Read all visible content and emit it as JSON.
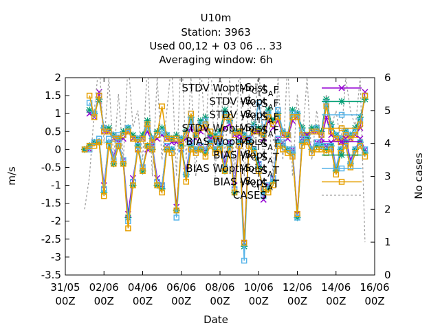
{
  "title": {
    "line1": "U10m",
    "line2": "Station:     3963",
    "line3": "Used  00,12  + 03 06 ... 33",
    "line4": "Averaging window:  6h"
  },
  "chart_data": {
    "type": "line",
    "xlabel": "Date",
    "ylabel": "m/s",
    "y2label": "No cases",
    "xlim": [
      0,
      16
    ],
    "ylim": [
      -3.5,
      2
    ],
    "y2lim": [
      0,
      6
    ],
    "x_ticks": [
      {
        "v": 0,
        "l1": "31/05",
        "l2": "00Z"
      },
      {
        "v": 2,
        "l1": "02/06",
        "l2": "00Z"
      },
      {
        "v": 4,
        "l1": "04/06",
        "l2": "00Z"
      },
      {
        "v": 6,
        "l1": "06/06",
        "l2": "00Z"
      },
      {
        "v": 8,
        "l1": "08/06",
        "l2": "00Z"
      },
      {
        "v": 10,
        "l1": "10/06",
        "l2": "00Z"
      },
      {
        "v": 12,
        "l1": "12/06",
        "l2": "00Z"
      },
      {
        "v": 14,
        "l1": "14/06",
        "l2": "00Z"
      },
      {
        "v": 16,
        "l1": "16/06",
        "l2": "00Z"
      }
    ],
    "y_ticks": [
      "2",
      "1.5",
      "1",
      "0.5",
      "0",
      "-0.5",
      "-1",
      "-1.5",
      "-2",
      "-2.5",
      "-3",
      "-3.5"
    ],
    "y2_ticks": [
      "0",
      "1",
      "2",
      "3",
      "4",
      "5",
      "6"
    ],
    "legend_position": "top-right",
    "series": [
      {
        "name": "STDV WoptMoist",
        "suffix": "TSCTSAF",
        "color": "#9400d3",
        "marker": "x",
        "x": [
          1.25,
          1.5,
          1.75,
          2.0,
          2.25,
          2.5,
          2.75,
          3.0,
          3.25,
          3.5,
          3.75,
          4.0,
          4.25,
          4.5,
          4.75,
          5.0,
          5.25,
          5.5,
          5.75,
          6.0,
          6.25,
          6.5,
          6.75,
          7.0,
          7.25,
          7.5,
          7.75,
          8.0,
          8.25,
          8.5,
          8.75,
          9.0,
          9.25,
          9.5,
          9.75,
          10.0,
          10.25,
          10.5,
          10.75,
          11.0,
          11.25,
          11.5,
          11.75,
          12.0,
          12.25,
          12.5,
          12.75,
          13.0,
          13.25,
          13.5,
          13.75,
          14.0,
          14.25,
          14.5,
          14.75,
          15.0,
          15.25,
          15.5
        ],
        "values": [
          1.0,
          0.9,
          1.6,
          0.5,
          0.5,
          0.3,
          0.3,
          0.3,
          0.5,
          0.3,
          0.2,
          0.3,
          0.5,
          0.2,
          0.3,
          0.4,
          0.3,
          0.2,
          0.2,
          0.2,
          0.3,
          0.6,
          0.3,
          0.5,
          0.6,
          0.3,
          0.3,
          0.3,
          0.6,
          0.7,
          0.4,
          0.4,
          0.3,
          0.2,
          0.5,
          0.5,
          0.3,
          0.8,
          0.6,
          0.8,
          0.4,
          0.3,
          0.8,
          0.9,
          0.4,
          0.3,
          0.5,
          0.5,
          0.3,
          0.9,
          0.4,
          0.3,
          0.2,
          0.4,
          0.3,
          0.4,
          0.6,
          1.6
        ]
      },
      {
        "name": "STDV Wopt",
        "suffix": "TSCTSAF",
        "color": "#009e73",
        "marker": "star",
        "x": [
          1.25,
          1.5,
          1.75,
          2.0,
          2.25,
          2.5,
          2.75,
          3.0,
          3.25,
          3.5,
          3.75,
          4.0,
          4.25,
          4.5,
          4.75,
          5.0,
          5.25,
          5.5,
          5.75,
          6.0,
          6.25,
          6.5,
          6.75,
          7.0,
          7.25,
          7.5,
          7.75,
          8.0,
          8.25,
          8.5,
          8.75,
          9.0,
          9.25,
          9.5,
          9.75,
          10.0,
          10.25,
          10.5,
          10.75,
          11.0,
          11.25,
          11.5,
          11.75,
          12.0,
          12.25,
          12.5,
          12.75,
          13.0,
          13.25,
          13.5,
          13.75,
          14.0,
          14.25,
          14.5,
          14.75,
          15.0,
          15.25,
          15.5
        ],
        "values": [
          1.1,
          1.0,
          1.4,
          0.6,
          0.6,
          0.4,
          0.3,
          0.5,
          0.6,
          0.4,
          0.3,
          0.4,
          0.8,
          0.3,
          0.5,
          0.6,
          0.4,
          0.3,
          0.4,
          0.3,
          0.5,
          0.9,
          0.4,
          0.8,
          0.9,
          0.4,
          0.4,
          0.5,
          1.1,
          0.8,
          0.5,
          0.5,
          0.4,
          0.3,
          0.7,
          0.6,
          0.4,
          1.1,
          0.8,
          1.0,
          0.5,
          0.4,
          1.1,
          1.0,
          0.6,
          0.4,
          0.6,
          0.6,
          0.5,
          1.4,
          0.7,
          0.4,
          0.3,
          0.5,
          0.4,
          0.6,
          0.9,
          1.4
        ]
      },
      {
        "name": "STDV Wopt",
        "suffix": "TSCTSAF",
        "color": "#56b4e9",
        "marker": "square",
        "x": [
          1.25,
          1.5,
          1.75,
          2.0,
          2.25,
          2.5,
          2.75,
          3.0,
          3.25,
          3.5,
          3.75,
          4.0,
          4.25,
          4.5,
          4.75,
          5.0,
          5.25,
          5.5,
          5.75,
          6.0,
          6.25,
          6.5,
          6.75,
          7.0,
          7.25,
          7.5,
          7.75,
          8.0,
          8.25,
          8.5,
          8.75,
          9.0,
          9.25,
          9.5,
          9.75,
          10.0,
          10.25,
          10.5,
          10.75,
          11.0,
          11.25,
          11.5,
          11.75,
          12.0,
          12.25,
          12.5,
          12.75,
          13.0,
          13.25,
          13.5,
          13.75,
          14.0,
          14.25,
          14.5,
          14.75,
          15.0,
          15.25,
          15.5
        ],
        "values": [
          1.3,
          1.0,
          1.5,
          0.6,
          0.5,
          0.4,
          0.4,
          0.4,
          0.6,
          0.3,
          0.3,
          0.3,
          0.6,
          0.3,
          0.4,
          0.5,
          0.4,
          0.3,
          0.3,
          0.3,
          0.4,
          0.8,
          0.4,
          0.7,
          0.8,
          0.5,
          0.3,
          0.4,
          1.0,
          0.8,
          0.5,
          0.5,
          0.4,
          0.3,
          0.6,
          1.3,
          0.5,
          1.0,
          0.7,
          1.1,
          0.5,
          0.4,
          1.0,
          1.0,
          0.5,
          0.4,
          0.5,
          0.6,
          0.4,
          1.3,
          0.6,
          0.4,
          0.3,
          0.5,
          0.4,
          0.5,
          0.8,
          1.5
        ]
      },
      {
        "name": "STDV WoptMoist",
        "suffix": "TSCTSAF",
        "color": "#e69f00",
        "marker": "square",
        "x": [
          1.25,
          1.5,
          1.75,
          2.0,
          2.25,
          2.5,
          2.75,
          3.0,
          3.25,
          3.5,
          3.75,
          4.0,
          4.25,
          4.5,
          4.75,
          5.0,
          5.25,
          5.5,
          5.75,
          6.0,
          6.25,
          6.5,
          6.75,
          7.0,
          7.25,
          7.5,
          7.75,
          8.0,
          8.25,
          8.5,
          8.75,
          9.0,
          9.25,
          9.5,
          9.75,
          10.0,
          10.25,
          10.5,
          10.75,
          11.0,
          11.25,
          11.5,
          11.75,
          12.0,
          12.25,
          12.5,
          12.75,
          13.0,
          13.25,
          13.5,
          13.75,
          14.0,
          14.25,
          14.5,
          14.75,
          15.0,
          15.25,
          15.5
        ],
        "values": [
          1.5,
          0.9,
          1.5,
          0.5,
          0.5,
          0.3,
          0.3,
          0.4,
          0.5,
          0.3,
          0.2,
          0.3,
          0.7,
          0.2,
          0.4,
          1.2,
          0.3,
          0.3,
          0.3,
          0.2,
          0.4,
          1.0,
          0.4,
          0.6,
          0.7,
          0.5,
          0.3,
          0.3,
          0.9,
          0.9,
          0.4,
          0.5,
          0.3,
          0.3,
          0.5,
          0.5,
          0.4,
          0.9,
          0.7,
          0.9,
          0.4,
          0.4,
          0.9,
          0.9,
          0.4,
          0.4,
          0.5,
          0.5,
          0.4,
          1.2,
          0.5,
          0.3,
          0.2,
          0.4,
          0.3,
          0.4,
          0.7,
          1.5
        ]
      },
      {
        "name": "BIAS WoptMoist",
        "suffix": "TSCTSAT",
        "color": "#9400d3",
        "marker": "x",
        "x": [
          1.0,
          1.25,
          1.5,
          1.75,
          2.0,
          2.25,
          2.5,
          2.75,
          3.0,
          3.25,
          3.5,
          3.75,
          4.0,
          4.25,
          4.5,
          4.75,
          5.0,
          5.25,
          5.5,
          5.75,
          6.0,
          6.25,
          6.5,
          6.75,
          7.0,
          7.25,
          7.5,
          7.75,
          8.0,
          8.25,
          8.5,
          8.75,
          9.0,
          9.25,
          9.5,
          9.75,
          10.0,
          10.25,
          10.5,
          10.75,
          11.0,
          11.25,
          11.5,
          11.75,
          12.0,
          12.25,
          12.5,
          12.75,
          13.0,
          13.25,
          13.5,
          13.75,
          14.0,
          14.25,
          14.5,
          14.75,
          15.0,
          15.25,
          15.5
        ],
        "values": [
          0.0,
          0.0,
          0.2,
          0.2,
          -1.0,
          0.2,
          -0.2,
          0.2,
          -0.3,
          -1.8,
          -0.8,
          0.0,
          -0.5,
          0.0,
          0.1,
          -0.8,
          -1.0,
          0.1,
          0.0,
          -1.6,
          0.0,
          -0.6,
          0.2,
          0.0,
          0.1,
          0.0,
          0.3,
          0.0,
          0.2,
          -0.4,
          0.2,
          -1.0,
          0.3,
          -2.6,
          0.3,
          0.0,
          -0.4,
          -1.4,
          -1.0,
          -0.8,
          0.3,
          0.2,
          0.0,
          0.0,
          -1.8,
          0.3,
          0.4,
          0.0,
          0.2,
          0.2,
          0.1,
          0.2,
          -0.5,
          0.0,
          0.3,
          -0.3,
          0.0,
          0.3,
          0.0
        ]
      },
      {
        "name": "BIAS Wopt",
        "suffix": "TSCTSAT",
        "color": "#009e73",
        "marker": "star",
        "x": [
          1.0,
          1.25,
          1.5,
          1.75,
          2.0,
          2.25,
          2.5,
          2.75,
          3.0,
          3.25,
          3.5,
          3.75,
          4.0,
          4.25,
          4.5,
          4.75,
          5.0,
          5.25,
          5.5,
          5.75,
          6.0,
          6.25,
          6.5,
          6.75,
          7.0,
          7.25,
          7.5,
          7.75,
          8.0,
          8.25,
          8.5,
          8.75,
          9.0,
          9.25,
          9.5,
          9.75,
          10.0,
          10.25,
          10.5,
          10.75,
          11.0,
          11.25,
          11.5,
          11.75,
          12.0,
          12.25,
          12.5,
          12.75,
          13.0,
          13.25,
          13.5,
          13.75,
          14.0,
          14.25,
          14.5,
          14.75,
          15.0,
          15.25,
          15.5
        ],
        "values": [
          0.0,
          0.1,
          0.2,
          0.2,
          -1.2,
          0.2,
          -0.4,
          0.1,
          -0.4,
          -1.9,
          -1.0,
          0.1,
          -0.6,
          0.1,
          0.0,
          -1.0,
          -1.1,
          0.0,
          0.0,
          -1.7,
          0.1,
          -0.7,
          0.1,
          0.0,
          0.0,
          -0.1,
          0.2,
          0.0,
          0.1,
          -0.6,
          0.1,
          -1.2,
          0.2,
          -2.7,
          0.2,
          0.0,
          -0.5,
          -1.2,
          -1.1,
          -0.9,
          0.2,
          0.1,
          0.0,
          -0.1,
          -1.9,
          0.2,
          0.3,
          0.0,
          0.1,
          0.1,
          0.0,
          0.1,
          -0.6,
          0.0,
          0.2,
          -0.4,
          0.0,
          0.2,
          -0.1
        ]
      },
      {
        "name": "BIAS WoptMoist",
        "suffix": "TSCTSAT",
        "color": "#56b4e9",
        "marker": "square",
        "x": [
          1.0,
          1.25,
          1.5,
          1.75,
          2.0,
          2.25,
          2.5,
          2.75,
          3.0,
          3.25,
          3.5,
          3.75,
          4.0,
          4.25,
          4.5,
          4.75,
          5.0,
          5.25,
          5.5,
          5.75,
          6.0,
          6.25,
          6.5,
          6.75,
          7.0,
          7.25,
          7.5,
          7.75,
          8.0,
          8.25,
          8.5,
          8.75,
          9.0,
          9.25,
          9.5,
          9.75,
          10.0,
          10.25,
          10.5,
          10.75,
          11.0,
          11.25,
          11.5,
          11.75,
          12.0,
          12.25,
          12.5,
          12.75,
          13.0,
          13.25,
          13.5,
          13.75,
          14.0,
          14.25,
          14.5,
          14.75,
          15.0,
          15.25,
          15.5
        ],
        "values": [
          0.0,
          0.0,
          0.2,
          0.3,
          -1.1,
          0.3,
          -0.3,
          0.2,
          -0.3,
          -2.0,
          -0.9,
          0.1,
          -0.5,
          0.1,
          0.1,
          -0.9,
          -1.0,
          0.1,
          0.0,
          -1.9,
          0.0,
          -0.7,
          0.2,
          0.0,
          0.1,
          0.0,
          0.2,
          0.0,
          0.2,
          -0.5,
          0.2,
          -1.1,
          0.2,
          -3.1,
          0.3,
          0.0,
          -0.4,
          -1.3,
          -1.0,
          -0.8,
          0.3,
          0.2,
          0.0,
          0.0,
          -1.9,
          0.3,
          0.3,
          0.0,
          0.2,
          0.1,
          0.1,
          0.1,
          -0.5,
          0.0,
          0.2,
          -0.4,
          0.0,
          0.2,
          0.0
        ]
      },
      {
        "name": "BIAS Wopt",
        "suffix": "TSCTSAT",
        "color": "#e69f00",
        "marker": "square",
        "x": [
          1.0,
          1.25,
          1.5,
          1.75,
          2.0,
          2.25,
          2.5,
          2.75,
          3.0,
          3.25,
          3.5,
          3.75,
          4.0,
          4.25,
          4.5,
          4.75,
          5.0,
          5.25,
          5.5,
          5.75,
          6.0,
          6.25,
          6.5,
          6.75,
          7.0,
          7.25,
          7.5,
          7.75,
          8.0,
          8.25,
          8.5,
          8.75,
          9.0,
          9.25,
          9.5,
          9.75,
          10.0,
          10.25,
          10.5,
          10.75,
          11.0,
          11.25,
          11.5,
          11.75,
          12.0,
          12.25,
          12.5,
          12.75,
          13.0,
          13.25,
          13.5,
          13.75,
          14.0,
          14.25,
          14.5,
          14.75,
          15.0,
          15.25,
          15.5
        ],
        "values": [
          0.0,
          0.1,
          0.1,
          0.2,
          -1.3,
          0.1,
          -0.4,
          0.1,
          -0.4,
          -2.2,
          -1.0,
          0.0,
          -0.6,
          0.1,
          0.0,
          -1.0,
          -1.2,
          0.0,
          -0.1,
          -1.7,
          0.1,
          -0.9,
          0.0,
          -0.1,
          0.0,
          -0.2,
          0.1,
          -0.1,
          0.0,
          -0.6,
          0.0,
          -1.2,
          0.1,
          -2.6,
          0.1,
          -0.1,
          -0.6,
          -1.1,
          -1.2,
          -1.0,
          0.1,
          0.0,
          -0.1,
          -0.2,
          -1.8,
          0.1,
          0.2,
          -0.1,
          0.0,
          0.0,
          -0.1,
          0.0,
          -0.7,
          -0.1,
          0.1,
          -0.5,
          -0.1,
          0.1,
          -0.2
        ]
      },
      {
        "name": "CASES",
        "suffix": "",
        "color": "#a0a0a0",
        "marker": "none",
        "axis": "y2",
        "x": [
          1.0,
          1.25,
          1.5,
          1.75,
          2.0,
          2.25,
          2.5,
          2.75,
          3.0,
          3.25,
          3.5,
          3.75,
          4.0,
          4.25,
          4.5,
          4.75,
          5.0,
          5.25,
          5.5,
          5.75,
          6.0,
          6.25,
          6.5,
          6.75,
          7.0,
          7.25,
          7.5,
          7.75,
          8.0,
          8.25,
          8.5,
          8.75,
          9.0,
          9.25,
          9.5,
          9.75,
          10.0,
          10.25,
          10.5,
          10.75,
          11.0,
          11.25,
          11.5,
          11.75,
          12.0,
          12.25,
          12.5,
          12.75,
          13.0,
          13.25,
          13.5,
          13.75,
          14.0,
          14.25,
          14.5,
          14.75,
          15.0,
          15.25,
          15.5
        ],
        "values": [
          2.0,
          3.0,
          5.0,
          6.5,
          4.0,
          6.0,
          3.5,
          5.5,
          3.5,
          6.5,
          4.5,
          5.0,
          3.5,
          6.5,
          3.0,
          6.0,
          3.5,
          5.0,
          6.5,
          3.0,
          7.0,
          3.5,
          6.0,
          3.0,
          6.5,
          4.0,
          7.0,
          3.0,
          6.5,
          3.5,
          6.0,
          3.0,
          6.5,
          3.0,
          5.5,
          4.0,
          6.5,
          3.5,
          5.0,
          3.0,
          6.0,
          3.5,
          6.5,
          3.0,
          5.5,
          4.0,
          6.0,
          3.5,
          5.0,
          4.0,
          5.5,
          4.5,
          5.0,
          4.0,
          6.0,
          5.0,
          4.5,
          6.0,
          1.0
        ]
      }
    ]
  }
}
